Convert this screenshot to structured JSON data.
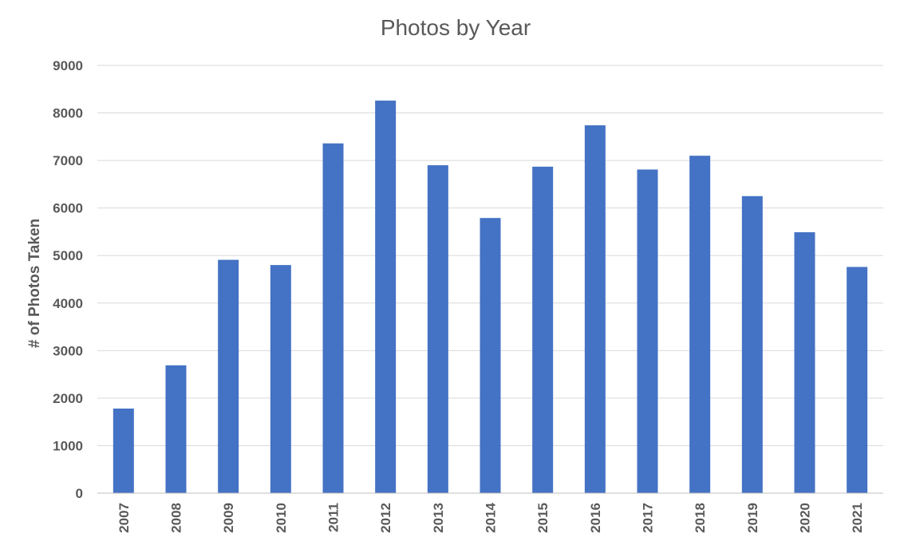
{
  "chart_data": {
    "type": "bar",
    "title": "Photos by Year",
    "xlabel": "",
    "ylabel": "# of Photos Taken",
    "categories": [
      "2007",
      "2008",
      "2009",
      "2010",
      "2011",
      "2012",
      "2013",
      "2014",
      "2015",
      "2016",
      "2017",
      "2018",
      "2019",
      "2020",
      "2021"
    ],
    "values": [
      1780,
      2690,
      4910,
      4800,
      7360,
      8260,
      6900,
      5790,
      6870,
      7740,
      6810,
      7100,
      6250,
      5490,
      4760
    ],
    "ylim": [
      0,
      9000
    ],
    "yticks": [
      "0",
      "1000",
      "2000",
      "3000",
      "4000",
      "5000",
      "6000",
      "7000",
      "8000",
      "9000"
    ],
    "grid": true,
    "legend": "none",
    "bar_color": "#4472c4"
  }
}
